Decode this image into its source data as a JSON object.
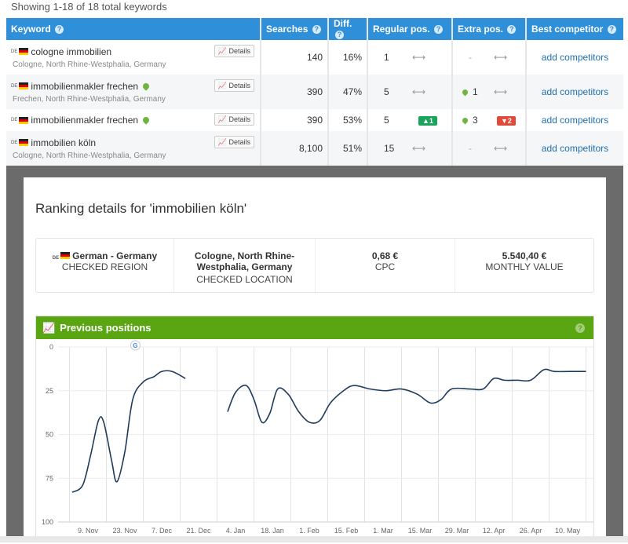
{
  "showing": "Showing 1-18 of 18 total keywords",
  "table": {
    "headers": {
      "keyword": "Keyword",
      "searches": "Searches",
      "diff": "Diff.",
      "regular": "Regular pos.",
      "extra": "Extra pos.",
      "competitor": "Best competitor"
    },
    "help_glyph": "?",
    "details_label": "Details",
    "country_code": "DE",
    "arrow": "⟷",
    "dash": "-",
    "rows": [
      {
        "keyword": "cologne immobilien",
        "location": "Cologne, North Rhine-Westphalia, Germany",
        "searches": "140",
        "diff": "16%",
        "regular": "1",
        "extra": "-",
        "competitor": "add competitors"
      },
      {
        "keyword": "immobilienmakler frechen",
        "location": "Frechen, North Rhine-Westphalia, Germany",
        "searches": "390",
        "diff": "47%",
        "regular": "5",
        "extra": "1",
        "competitor": "add competitors"
      },
      {
        "keyword": "immobilienmakler frechen",
        "location": "",
        "searches": "390",
        "diff": "53%",
        "regular": "5",
        "regular_change": "▲1",
        "extra": "3",
        "extra_change": "▼2",
        "competitor": "add competitors"
      },
      {
        "keyword": "immobilien köln",
        "location": "Cologne, North Rhine-Westphalia, Germany",
        "searches": "8,100",
        "diff": "51%",
        "regular": "15",
        "extra": "-",
        "competitor": "add competitors"
      }
    ]
  },
  "modal": {
    "title": "Ranking details for 'immobilien köln'",
    "info": {
      "region_value": "German - Germany",
      "region_label": "CHECKED REGION",
      "location_value": "Cologne, North Rhine-Westphalia, Germany",
      "location_label": "CHECKED LOCATION",
      "cpc_value": "0,68 €",
      "cpc_label": "CPC",
      "monthly_value": "5.540,40 €",
      "monthly_label": "MONTHLY VALUE"
    },
    "chart_title": "Previous positions",
    "chart_help": "?"
  },
  "colors": {
    "header_blue": "#2f8fd8",
    "chart_green": "#5aa512",
    "line_navy": "#1f3b5c",
    "up_green": "#1aa35a",
    "down_red": "#e04a3a",
    "link_blue": "#1f6fb0"
  },
  "chart_data": {
    "type": "line",
    "title": "Previous positions",
    "xlabel": "",
    "ylabel": "",
    "y_inverted": true,
    "ylim": [
      0,
      100
    ],
    "yticks": [
      0,
      25,
      50,
      75,
      100
    ],
    "xticks": [
      "9. Nov",
      "23. Nov",
      "7. Dec",
      "21. Dec",
      "4. Jan",
      "18. Jan",
      "1. Feb",
      "15. Feb",
      "1. Mar",
      "15. Mar",
      "29. Mar",
      "12. Apr",
      "26. Apr",
      "10. May"
    ],
    "series": [
      {
        "segments": [
          [
            [
              "2023-11-03",
              83
            ],
            [
              "2023-11-07",
              79
            ],
            [
              "2023-11-10",
              62
            ],
            [
              "2023-11-13",
              42
            ],
            [
              "2023-11-15",
              43
            ],
            [
              "2023-11-18",
              65
            ],
            [
              "2023-11-20",
              77
            ],
            [
              "2023-11-23",
              60
            ],
            [
              "2023-11-26",
              30
            ],
            [
              "2023-11-30",
              20
            ],
            [
              "2023-12-04",
              17
            ],
            [
              "2023-12-07",
              14
            ],
            [
              "2023-12-11",
              14
            ],
            [
              "2023-12-16",
              18
            ]
          ],
          [
            [
              "2024-01-01",
              37
            ],
            [
              "2024-01-04",
              26
            ],
            [
              "2024-01-08",
              22
            ],
            [
              "2024-01-11",
              30
            ],
            [
              "2024-01-14",
              43
            ],
            [
              "2024-01-17",
              38
            ],
            [
              "2024-01-20",
              24
            ],
            [
              "2024-01-24",
              27
            ],
            [
              "2024-01-28",
              37
            ],
            [
              "2024-02-01",
              43
            ],
            [
              "2024-02-05",
              42
            ],
            [
              "2024-02-09",
              32
            ],
            [
              "2024-02-14",
              25
            ],
            [
              "2024-02-18",
              22
            ],
            [
              "2024-02-24",
              24
            ],
            [
              "2024-03-01",
              25
            ],
            [
              "2024-03-07",
              24
            ],
            [
              "2024-03-13",
              27
            ],
            [
              "2024-03-18",
              32
            ],
            [
              "2024-03-22",
              30
            ],
            [
              "2024-03-26",
              24
            ],
            [
              "2024-04-02",
              24
            ],
            [
              "2024-04-07",
              24
            ],
            [
              "2024-04-11",
              18
            ],
            [
              "2024-04-15",
              19
            ],
            [
              "2024-04-20",
              19
            ],
            [
              "2024-04-25",
              19
            ],
            [
              "2024-04-30",
              13
            ],
            [
              "2024-05-04",
              14
            ],
            [
              "2024-05-10",
              14
            ],
            [
              "2024-05-16",
              14
            ]
          ]
        ]
      }
    ]
  }
}
